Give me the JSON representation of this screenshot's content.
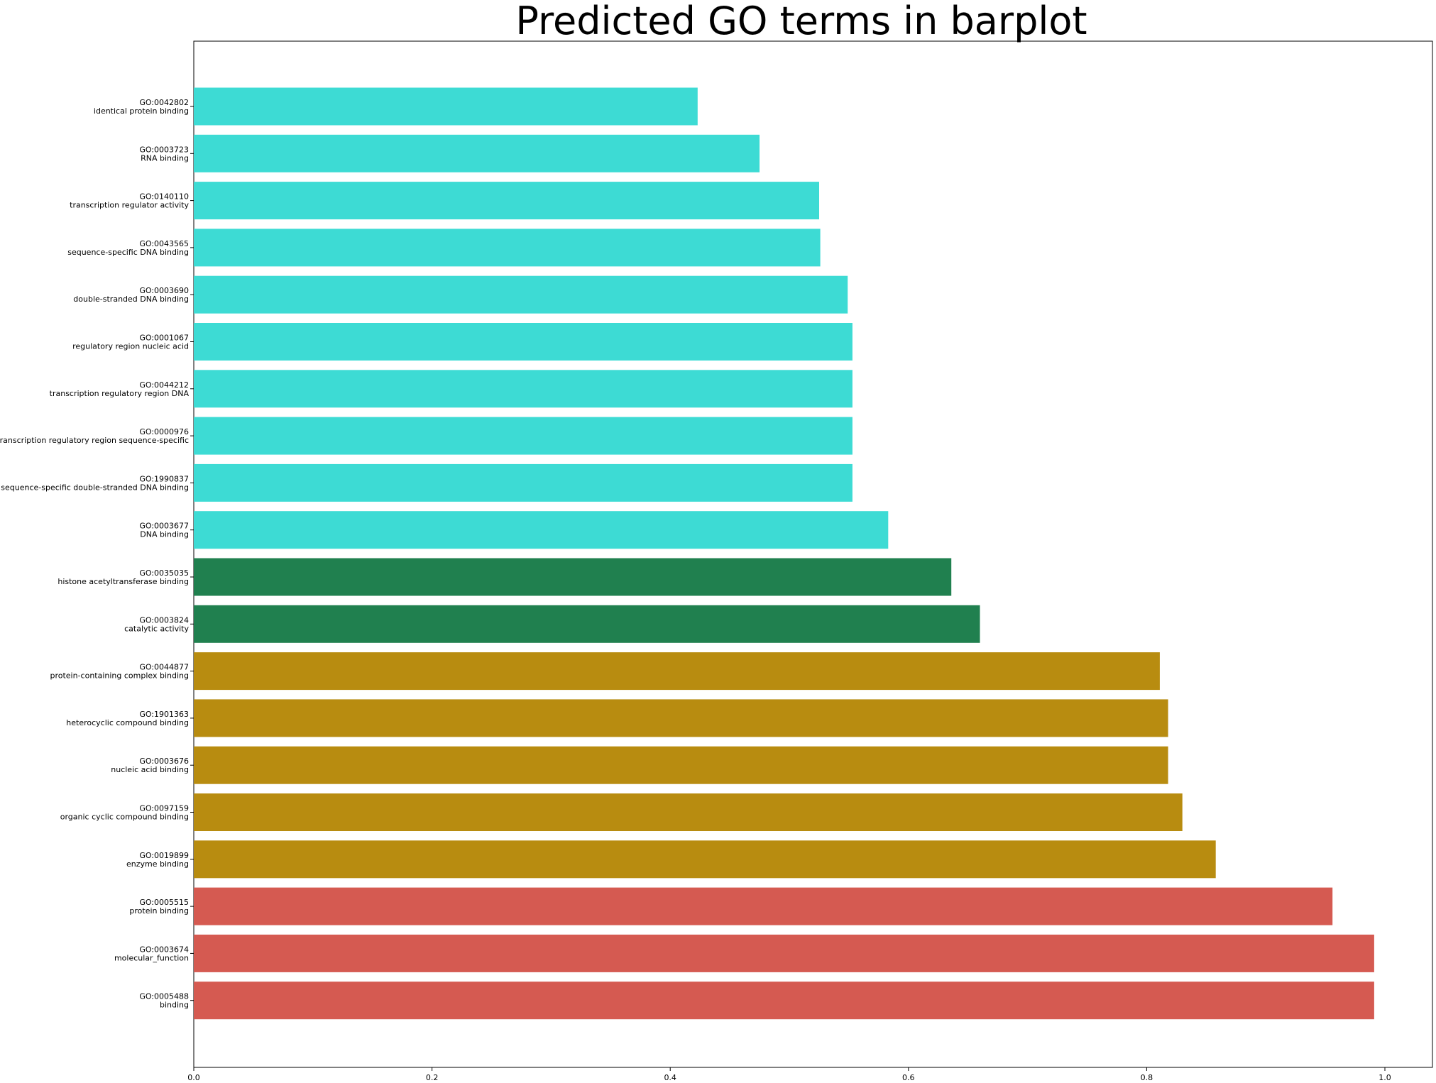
{
  "chart_data": {
    "type": "bar",
    "orientation": "horizontal",
    "title": "Predicted GO terms in barplot",
    "xlabel": "",
    "ylabel": "",
    "xlim": [
      0,
      1.04
    ],
    "xticks": [
      "0.0",
      "0.2",
      "0.4",
      "0.6",
      "0.8",
      "1.0"
    ],
    "grid": false,
    "categories": [
      {
        "id": "GO:0042802",
        "name": "identical protein binding"
      },
      {
        "id": "GO:0003723",
        "name": "RNA binding"
      },
      {
        "id": "GO:0140110",
        "name": "transcription regulator activity"
      },
      {
        "id": "GO:0043565",
        "name": "sequence-specific DNA binding"
      },
      {
        "id": "GO:0003690",
        "name": "double-stranded DNA binding"
      },
      {
        "id": "GO:0001067",
        "name": "regulatory region nucleic acid"
      },
      {
        "id": "GO:0044212",
        "name": "transcription regulatory region DNA"
      },
      {
        "id": "GO:0000976",
        "name": "transcription regulatory region sequence-specific"
      },
      {
        "id": "GO:1990837",
        "name": "sequence-specific double-stranded DNA binding"
      },
      {
        "id": "GO:0003677",
        "name": "DNA binding"
      },
      {
        "id": "GO:0035035",
        "name": "histone acetyltransferase binding"
      },
      {
        "id": "GO:0003824",
        "name": "catalytic activity"
      },
      {
        "id": "GO:0044877",
        "name": "protein-containing complex binding"
      },
      {
        "id": "GO:1901363",
        "name": "heterocyclic compound binding"
      },
      {
        "id": "GO:0003676",
        "name": "nucleic acid binding"
      },
      {
        "id": "GO:0097159",
        "name": "organic cyclic compound binding"
      },
      {
        "id": "GO:0019899",
        "name": "enzyme binding"
      },
      {
        "id": "GO:0005515",
        "name": "protein binding"
      },
      {
        "id": "GO:0003674",
        "name": "molecular_function"
      },
      {
        "id": "GO:0005488",
        "name": "binding"
      }
    ],
    "values": [
      0.423,
      0.475,
      0.525,
      0.526,
      0.549,
      0.553,
      0.553,
      0.553,
      0.553,
      0.583,
      0.636,
      0.66,
      0.811,
      0.818,
      0.818,
      0.83,
      0.858,
      0.956,
      0.991,
      0.991
    ],
    "bar_colors": [
      "#3ddbd4",
      "#3ddbd4",
      "#3ddbd4",
      "#3ddbd4",
      "#3ddbd4",
      "#3ddbd4",
      "#3ddbd4",
      "#3ddbd4",
      "#3ddbd4",
      "#3ddbd4",
      "#20804f",
      "#20804f",
      "#b88c10",
      "#b88c10",
      "#b88c10",
      "#b88c10",
      "#b88c10",
      "#d55a51",
      "#d55a51",
      "#d55a51"
    ]
  }
}
